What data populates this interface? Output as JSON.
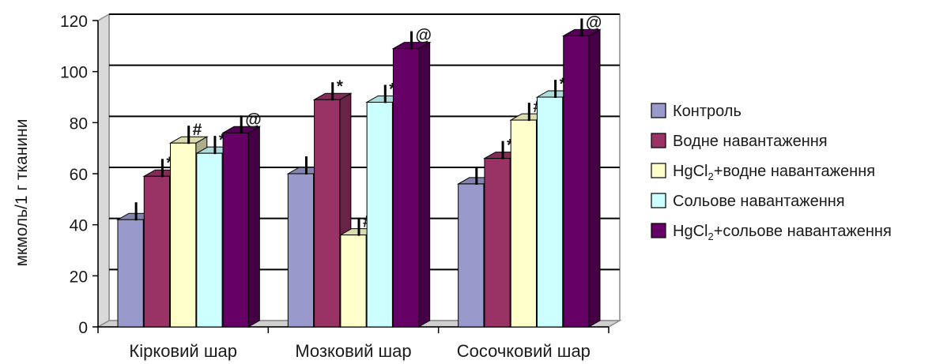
{
  "chart_data": {
    "type": "bar",
    "style": "3d-clustered-column",
    "title": "",
    "xlabel": "",
    "ylabel": "мкмоль/1 г тканини",
    "ylim": [
      0,
      120
    ],
    "yticks": [
      "0",
      "20",
      "40",
      "60",
      "80",
      "100",
      "120"
    ],
    "grid": true,
    "legend_position": "right",
    "categories": [
      "Кірковий шар",
      "Мозковий шар",
      "Сосочковий шар"
    ],
    "series": [
      {
        "name": "Контроль",
        "name_parts": [
          "Контроль"
        ],
        "color": "#9999cc",
        "values": [
          42,
          60,
          56
        ],
        "markers": [
          "",
          "",
          ""
        ]
      },
      {
        "name": "Водне навантаження",
        "name_parts": [
          "Водне навантаження"
        ],
        "color": "#993366",
        "values": [
          59,
          89,
          66
        ],
        "markers": [
          "*",
          "*",
          "*"
        ]
      },
      {
        "name": "HgCl2+водне навантаження",
        "name_parts": [
          "HgCl",
          "2",
          "+водне навантаження"
        ],
        "color": "#ffffcc",
        "values": [
          72,
          36,
          81
        ],
        "markers": [
          "#",
          "#",
          "#"
        ]
      },
      {
        "name": "Сольове навантаження",
        "name_parts": [
          "Сольове навантаження"
        ],
        "color": "#ccffff",
        "values": [
          68,
          88,
          90
        ],
        "markers": [
          "*",
          "*",
          "*"
        ]
      },
      {
        "name": "HgCl2+сольове навантаження",
        "name_parts": [
          "HgCl",
          "2",
          "+сольове навантаження"
        ],
        "color": "#660066",
        "values": [
          76,
          109,
          114
        ],
        "markers": [
          "@",
          "@",
          "@"
        ]
      }
    ]
  }
}
